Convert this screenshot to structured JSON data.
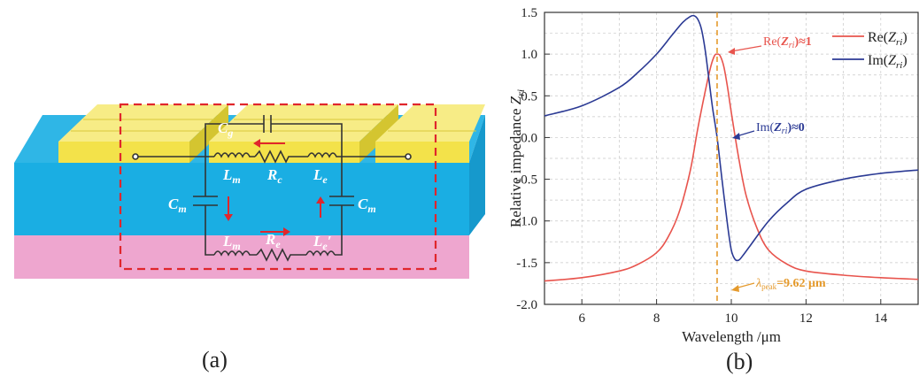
{
  "panel_a": {
    "caption": "(a)",
    "labels": {
      "cg_main": "C",
      "cg_sub": "g",
      "lm_top_main": "L",
      "lm_top_sub": "m",
      "rc_main": "R",
      "rc_sub": "c",
      "le_top_main": "L",
      "le_top_sub": "e",
      "cm_left_main": "C",
      "cm_left_sub": "m",
      "cm_right_main": "C",
      "cm_right_sub": "m",
      "lm_bot_main": "L",
      "lm_bot_sub": "m",
      "re_main": "R",
      "re_sub": "e",
      "le_bot_main": "L",
      "le_bot_sub": "e",
      "le_bot_prime": "′"
    }
  },
  "panel_b": {
    "caption": "(b)",
    "annotations": {
      "re_ann_pre": "Re(",
      "re_ann_z": "Z",
      "re_ann_sub": "ri",
      "re_ann_post": ")≈1",
      "im_ann_pre": "Im(",
      "im_ann_z": "Z",
      "im_ann_sub": "ri",
      "im_ann_post": ")≈0",
      "peak_lambda": "λ",
      "peak_sub": "peak",
      "peak_post": "=9.62 μm"
    },
    "colors": {
      "re": "#e8544d",
      "im": "#2b3a94",
      "peak": "#e59a2c",
      "grid": "#c8c8c8"
    }
  },
  "chart_data": {
    "type": "line",
    "xlabel": "Wavelength / μm",
    "ylabel": "Relative impedance Zri",
    "xlim": [
      5,
      15
    ],
    "ylim": [
      -2.0,
      1.5
    ],
    "xticks": [
      "6",
      "8",
      "10",
      "12",
      "14"
    ],
    "yticks": [
      "1.5",
      "1.0",
      "0.5",
      "0.0",
      "-0.5",
      "-1.0",
      "-1.5",
      "-2.0"
    ],
    "grid": true,
    "legend_position": "top-right",
    "peak_x": 9.62,
    "series": [
      {
        "name": "Re(Zri)",
        "color": "#e8544d",
        "x": [
          5.0,
          6.0,
          7.0,
          7.5,
          8.0,
          8.3,
          8.6,
          8.9,
          9.1,
          9.3,
          9.45,
          9.55,
          9.62,
          9.7,
          9.8,
          9.9,
          10.0,
          10.2,
          10.4,
          10.7,
          11.0,
          11.5,
          12.0,
          13.0,
          14.0,
          15.0
        ],
        "y": [
          -1.72,
          -1.68,
          -1.6,
          -1.52,
          -1.38,
          -1.2,
          -0.9,
          -0.4,
          0.1,
          0.55,
          0.85,
          0.98,
          1.0,
          0.98,
          0.85,
          0.6,
          0.3,
          -0.25,
          -0.7,
          -1.1,
          -1.35,
          -1.52,
          -1.6,
          -1.65,
          -1.68,
          -1.7
        ]
      },
      {
        "name": "Im(Zri)",
        "color": "#2b3a94",
        "x": [
          5.0,
          6.0,
          7.0,
          7.5,
          8.0,
          8.4,
          8.7,
          8.9,
          9.0,
          9.1,
          9.2,
          9.3,
          9.4,
          9.5,
          9.62,
          9.75,
          9.9,
          10.0,
          10.1,
          10.2,
          10.3,
          10.5,
          11.0,
          11.5,
          12.0,
          13.0,
          14.0,
          15.0
        ],
        "y": [
          0.26,
          0.38,
          0.6,
          0.78,
          1.0,
          1.22,
          1.38,
          1.45,
          1.46,
          1.42,
          1.3,
          1.05,
          0.7,
          0.35,
          0.0,
          -0.5,
          -1.05,
          -1.35,
          -1.46,
          -1.47,
          -1.42,
          -1.3,
          -1.0,
          -0.78,
          -0.62,
          -0.5,
          -0.43,
          -0.39
        ]
      }
    ]
  }
}
